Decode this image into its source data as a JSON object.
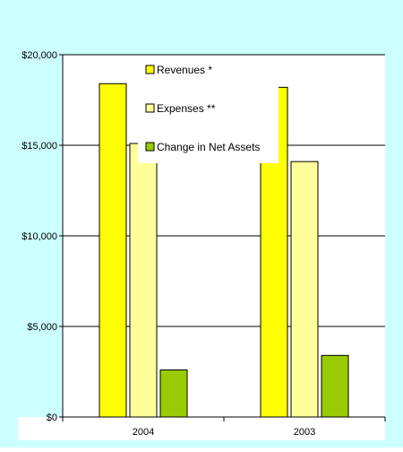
{
  "chart_data": {
    "type": "bar",
    "categories": [
      "2004",
      "2003"
    ],
    "series": [
      {
        "name": "Revenues *",
        "values": [
          18400,
          18200
        ],
        "color": "#ffff00"
      },
      {
        "name": "Expenses **",
        "values": [
          15100,
          14100
        ],
        "color": "#ffff99"
      },
      {
        "name": "Change in Net Assets",
        "values": [
          2600,
          3400
        ],
        "color": "#99cc00"
      }
    ],
    "ylim": [
      0,
      20000
    ],
    "yticks": [
      0,
      5000,
      10000,
      15000,
      20000
    ],
    "ytick_labels": [
      "$0",
      "$5,000",
      "$10,000",
      "$15,000",
      "$20,000"
    ],
    "title": "",
    "xlabel": "",
    "ylabel": "",
    "grid": true,
    "legend_placement": "top-center",
    "background_color": "#ccffff",
    "plot_background_color": "#ffffff"
  }
}
